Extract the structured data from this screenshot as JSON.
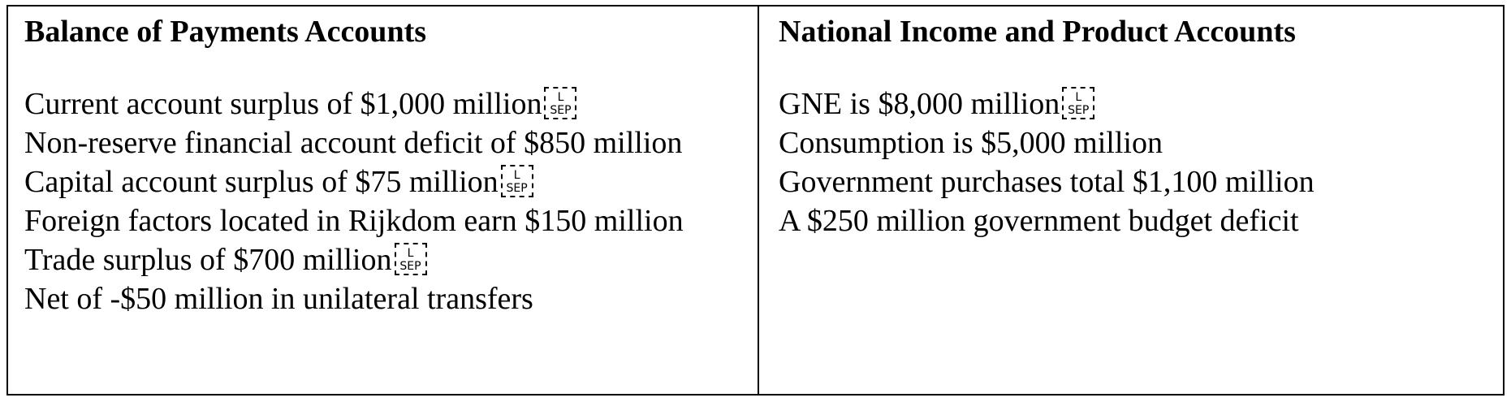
{
  "left": {
    "heading": "Balance of Payments Accounts",
    "lines": [
      "Current account surplus of $1,000 million",
      "Non-reserve financial account deficit of $850 million",
      "Capital account surplus of $75 million",
      "Foreign factors located in Rijkdom earn $150 million",
      "Trade surplus of $700 million",
      "Net of -$50 million in unilateral transfers"
    ]
  },
  "right": {
    "heading": "National Income and Product Accounts",
    "lines": [
      "GNE is $8,000 million",
      "Consumption is $5,000 million",
      "Government purchases total $1,100 million",
      "A $250 million government budget deficit"
    ]
  },
  "sep_glyph": {
    "top": "L",
    "bottom": "SEP"
  }
}
